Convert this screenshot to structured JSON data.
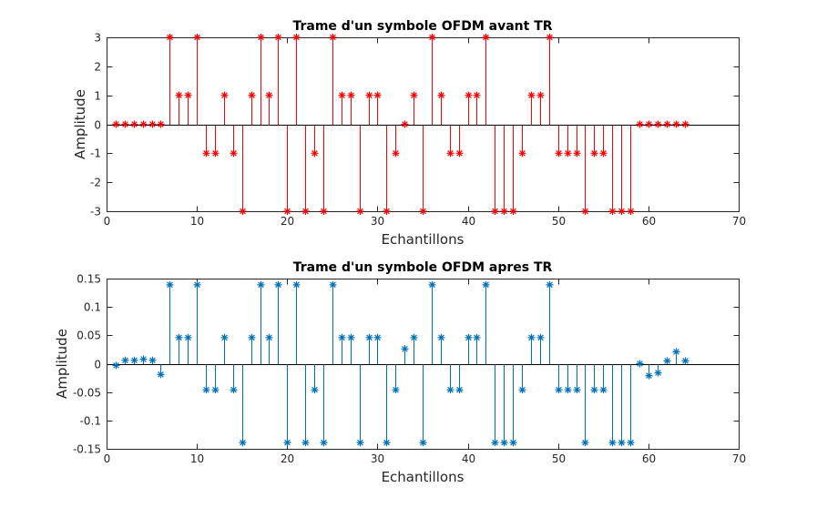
{
  "chart_data": [
    {
      "type": "stem",
      "title": "Trame d'un symbole OFDM avant TR",
      "xlabel": "Echantillons",
      "ylabel": "Amplitude",
      "xlim": [
        0,
        70
      ],
      "ylim": [
        -3,
        3
      ],
      "xticks": [
        0,
        10,
        20,
        30,
        40,
        50,
        60,
        70
      ],
      "yticks": [
        -3,
        -2,
        -1,
        0,
        1,
        2,
        3
      ],
      "xtick_labels": [
        "0",
        "10",
        "20",
        "30",
        "40",
        "50",
        "60",
        "70"
      ],
      "ytick_labels": [
        "-3",
        "-2",
        "-1",
        "0",
        "1",
        "2",
        "3"
      ],
      "marker": "*",
      "color": "#ff0000",
      "grid": false,
      "x": [
        1,
        2,
        3,
        4,
        5,
        6,
        7,
        8,
        9,
        10,
        11,
        12,
        13,
        14,
        15,
        16,
        17,
        18,
        19,
        20,
        21,
        22,
        23,
        24,
        25,
        26,
        27,
        28,
        29,
        30,
        31,
        32,
        33,
        34,
        35,
        36,
        37,
        38,
        39,
        40,
        41,
        42,
        43,
        44,
        45,
        46,
        47,
        48,
        49,
        50,
        51,
        52,
        53,
        54,
        55,
        56,
        57,
        58,
        59,
        60,
        61,
        62,
        63,
        64
      ],
      "y": [
        0,
        0,
        0,
        0,
        0,
        0,
        3,
        1,
        1,
        3,
        -1,
        -1,
        1,
        -1,
        -3,
        1,
        3,
        1,
        3,
        -3,
        3,
        -3,
        -1,
        -3,
        3,
        1,
        1,
        -3,
        1,
        1,
        -3,
        -1,
        0,
        1,
        -3,
        3,
        1,
        -1,
        -1,
        1,
        1,
        3,
        -3,
        -3,
        -3,
        -1,
        1,
        1,
        3,
        -1,
        -1,
        -1,
        -3,
        -1,
        -1,
        -3,
        -3,
        -3,
        0,
        0,
        0,
        0,
        0,
        0
      ]
    },
    {
      "type": "stem",
      "title": "Trame d'un symbole OFDM apres TR",
      "xlabel": "Echantillons",
      "ylabel": "Amplitude",
      "xlim": [
        0,
        70
      ],
      "ylim": [
        -0.15,
        0.15
      ],
      "xticks": [
        0,
        10,
        20,
        30,
        40,
        50,
        60,
        70
      ],
      "yticks": [
        -0.15,
        -0.1,
        -0.05,
        0,
        0.05,
        0.1,
        0.15
      ],
      "xtick_labels": [
        "0",
        "10",
        "20",
        "30",
        "40",
        "50",
        "60",
        "70"
      ],
      "ytick_labels": [
        "-0.15",
        "-0.1",
        "-0.05",
        "0",
        "0.05",
        "0.1",
        "0.15"
      ],
      "marker": "*",
      "color": "#0072bd",
      "grid": false,
      "x": [
        1,
        2,
        3,
        4,
        5,
        6,
        7,
        8,
        9,
        10,
        11,
        12,
        13,
        14,
        15,
        16,
        17,
        18,
        19,
        20,
        21,
        22,
        23,
        24,
        25,
        26,
        27,
        28,
        29,
        30,
        31,
        32,
        33,
        34,
        35,
        36,
        37,
        38,
        39,
        40,
        41,
        42,
        43,
        44,
        45,
        46,
        47,
        48,
        49,
        50,
        51,
        52,
        53,
        54,
        55,
        56,
        57,
        58,
        59,
        60,
        61,
        62,
        63,
        64
      ],
      "y": [
        -0.003,
        0.006,
        0.006,
        0.008,
        0.006,
        -0.019,
        0.139,
        0.046,
        0.046,
        0.139,
        -0.046,
        -0.046,
        0.046,
        -0.046,
        -0.139,
        0.046,
        0.139,
        0.046,
        0.139,
        -0.139,
        0.139,
        -0.139,
        -0.046,
        -0.139,
        0.139,
        0.046,
        0.046,
        -0.139,
        0.046,
        0.046,
        -0.139,
        -0.046,
        0.026,
        0.046,
        -0.139,
        0.139,
        0.046,
        -0.046,
        -0.046,
        0.046,
        0.046,
        0.139,
        -0.139,
        -0.139,
        -0.139,
        -0.046,
        0.046,
        0.046,
        0.139,
        -0.046,
        -0.046,
        -0.046,
        -0.139,
        -0.046,
        -0.046,
        -0.139,
        -0.139,
        -0.139,
        0.0,
        -0.021,
        -0.016,
        0.005,
        0.021,
        0.005
      ]
    }
  ]
}
